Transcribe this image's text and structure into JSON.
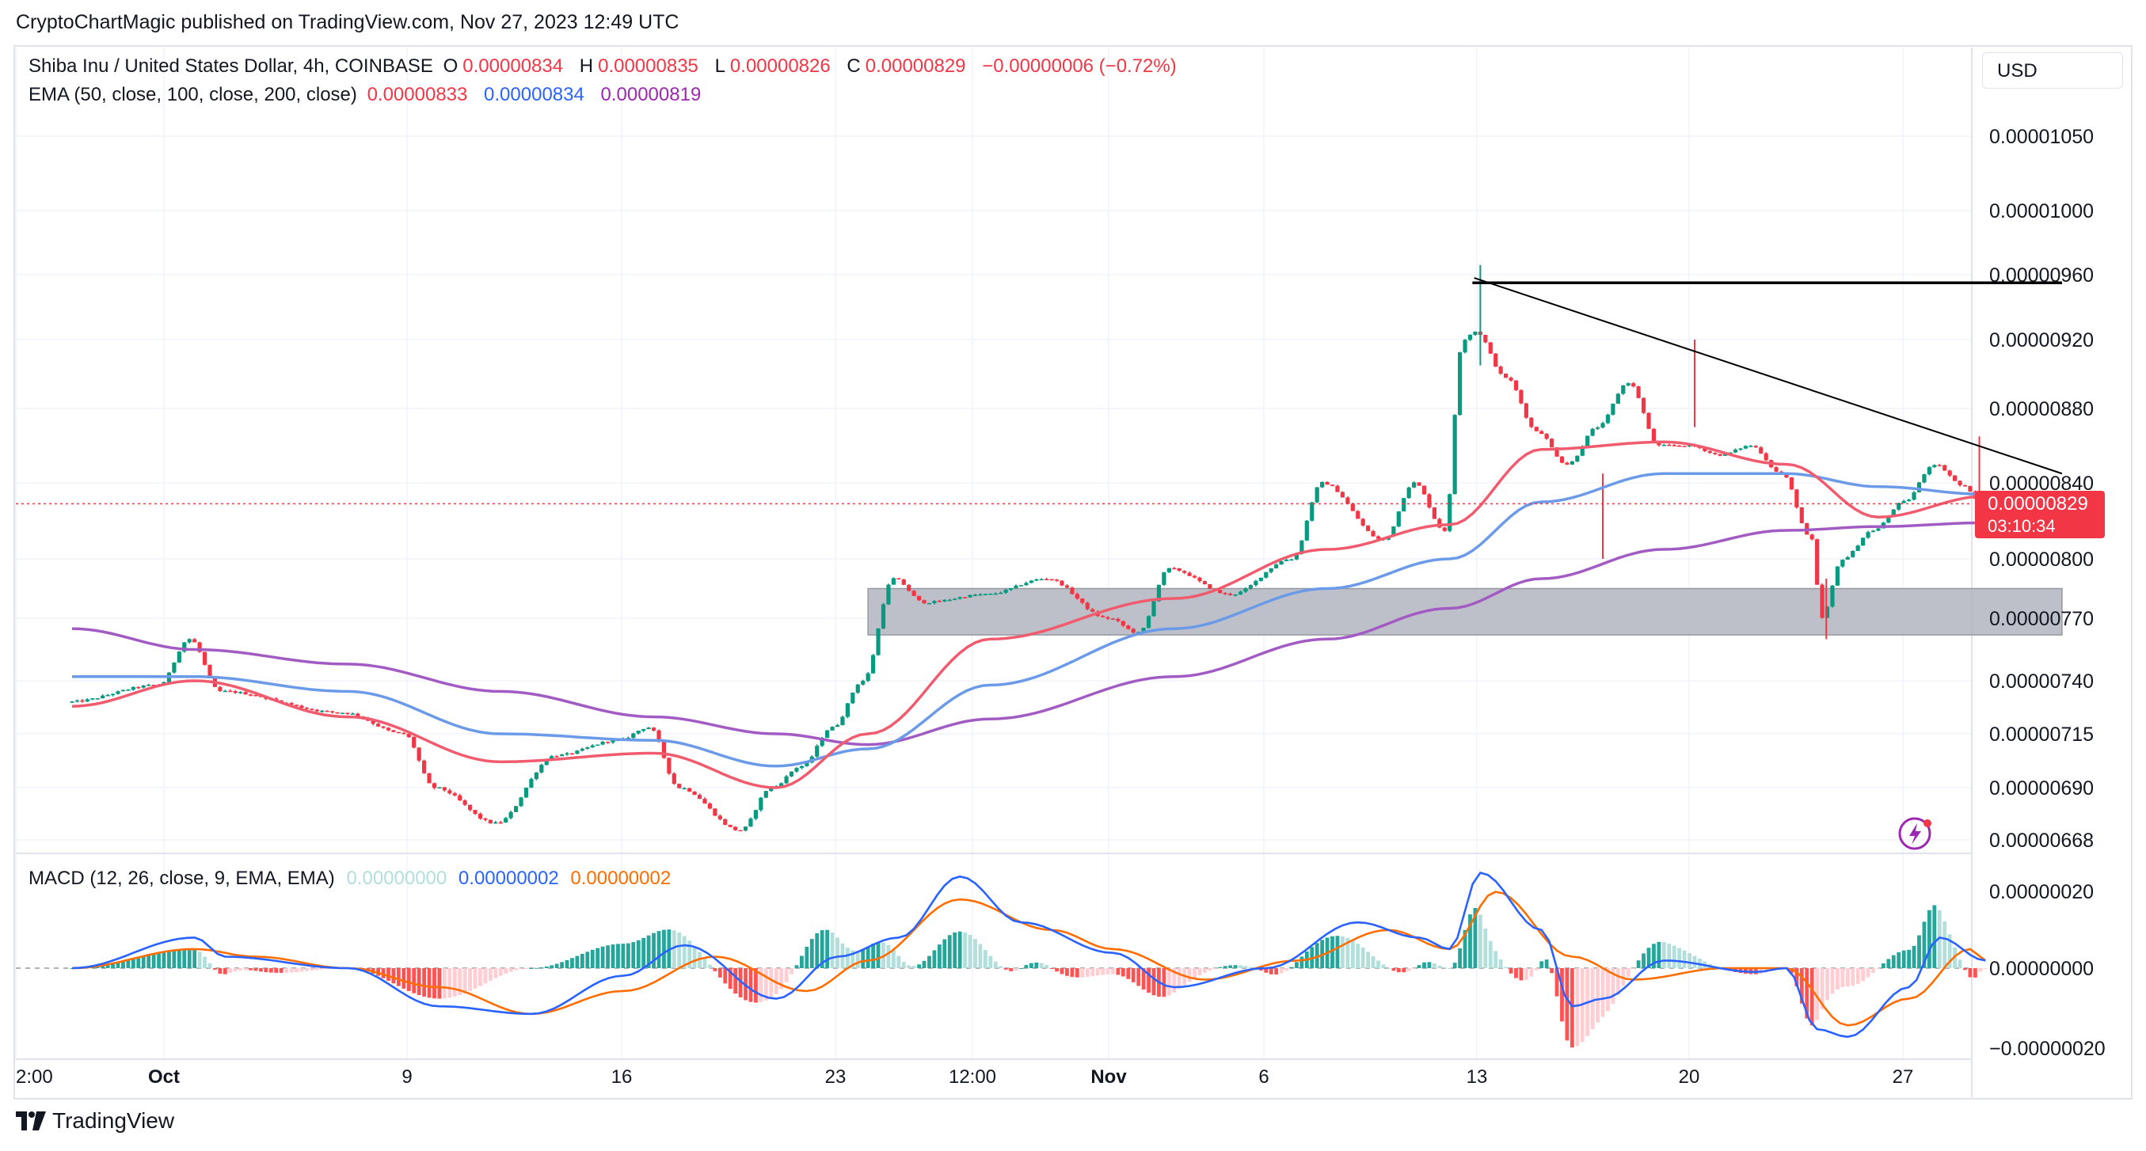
{
  "caption": "CryptoChartMagic published on TradingView.com, Nov 27, 2023 12:49 UTC",
  "legend": {
    "title": "Shiba Inu / United States Dollar, 4h, COINBASE",
    "o_label": "O",
    "o_val": "0.00000834",
    "h_label": "H",
    "h_val": "0.00000835",
    "l_label": "L",
    "l_val": "0.00000826",
    "c_label": "C",
    "c_val": "0.00000829",
    "change": "−0.00000006 (−0.72%)",
    "ema_title": "EMA (50, close, 100, close, 200, close)",
    "ema50": "0.00000833",
    "ema100": "0.00000834",
    "ema200": "0.00000819"
  },
  "currency": "USD",
  "last_price": "0.00000829",
  "countdown": "03:10:34",
  "macd_legend": {
    "title": "MACD (12, 26, close, 9, EMA, EMA)",
    "hist": "0.00000000",
    "macd": "0.00000002",
    "signal": "0.00000002"
  },
  "brand": "TradingView",
  "colors": {
    "up": "#089981",
    "down": "#f23645",
    "ema50": "#f05b6e",
    "ema100": "#6b9ae8",
    "ema200": "#a35bc4",
    "macd": "#2962ff",
    "signal": "#ff6d00",
    "zone": "#b2b5be",
    "price_line": "#f23645"
  },
  "chart_data": {
    "type": "candlestick",
    "symbol": "SHIB/USD",
    "timeframe": "4h",
    "price_axis_ticks": [
      "0.00001050",
      "0.00001000",
      "0.00000960",
      "0.00000920",
      "0.00000880",
      "0.00000840",
      "0.00000800",
      "0.00000770",
      "0.00000740",
      "0.00000715",
      "0.00000690",
      "0.00000668"
    ],
    "time_axis_ticks": [
      "2:00",
      "Oct",
      "9",
      "16",
      "23",
      "12:00",
      "Nov",
      "6",
      "13",
      "20",
      "27"
    ],
    "macd_axis_ticks": [
      "0.00000020",
      "0.00000000",
      "−0.00000020"
    ],
    "anchors_day": [
      {
        "day": -3,
        "price": 7.3e-06
      },
      {
        "day": 0,
        "price": 7.38e-06
      },
      {
        "day": 1,
        "price": 7.6e-06
      },
      {
        "day": 2,
        "price": 7.35e-06
      },
      {
        "day": 6,
        "price": 7.25e-06
      },
      {
        "day": 8,
        "price": 7.15e-06
      },
      {
        "day": 9,
        "price": 6.9e-06
      },
      {
        "day": 11,
        "price": 6.75e-06
      },
      {
        "day": 13,
        "price": 7.05e-06
      },
      {
        "day": 15,
        "price": 7.12e-06
      },
      {
        "day": 16,
        "price": 7.18e-06
      },
      {
        "day": 17,
        "price": 6.9e-06
      },
      {
        "day": 19,
        "price": 6.72e-06
      },
      {
        "day": 20,
        "price": 6.9e-06
      },
      {
        "day": 21,
        "price": 7e-06
      },
      {
        "day": 22,
        "price": 7.18e-06
      },
      {
        "day": 23,
        "price": 7.4e-06
      },
      {
        "day": 24,
        "price": 7.9e-06
      },
      {
        "day": 25,
        "price": 7.78e-06
      },
      {
        "day": 27,
        "price": 7.82e-06
      },
      {
        "day": 29,
        "price": 7.9e-06
      },
      {
        "day": 31,
        "price": 7.7e-06
      },
      {
        "day": 32,
        "price": 7.63e-06
      },
      {
        "day": 33,
        "price": 7.95e-06
      },
      {
        "day": 35,
        "price": 7.82e-06
      },
      {
        "day": 37,
        "price": 8e-06
      },
      {
        "day": 38,
        "price": 8.4e-06
      },
      {
        "day": 40,
        "price": 8.1e-06
      },
      {
        "day": 41,
        "price": 8.4e-06
      },
      {
        "day": 42,
        "price": 8.15e-06
      },
      {
        "day": 42.6,
        "price": 9.2e-06
      },
      {
        "day": 43,
        "price": 9.25e-06
      },
      {
        "day": 44,
        "price": 8.98e-06
      },
      {
        "day": 45,
        "price": 8.68e-06
      },
      {
        "day": 46,
        "price": 8.5e-06
      },
      {
        "day": 47,
        "price": 8.7e-06
      },
      {
        "day": 48,
        "price": 8.95e-06
      },
      {
        "day": 49,
        "price": 8.6e-06
      },
      {
        "day": 50,
        "price": 8.6e-06
      },
      {
        "day": 51,
        "price": 8.55e-06
      },
      {
        "day": 52,
        "price": 8.6e-06
      },
      {
        "day": 53,
        "price": 8.45e-06
      },
      {
        "day": 54,
        "price": 8.1e-06
      },
      {
        "day": 54.3,
        "price": 7.7e-06
      },
      {
        "day": 55,
        "price": 8e-06
      },
      {
        "day": 56,
        "price": 8.15e-06
      },
      {
        "day": 57,
        "price": 8.3e-06
      },
      {
        "day": 58,
        "price": 8.5e-06
      },
      {
        "day": 59,
        "price": 8.38e-06
      },
      {
        "day": 59.5,
        "price": 8.29e-06
      }
    ],
    "ema50_anchors": [
      [
        -3,
        7.28e-06
      ],
      [
        1,
        7.4e-06
      ],
      [
        6,
        7.23e-06
      ],
      [
        11,
        7.02e-06
      ],
      [
        16,
        7.06e-06
      ],
      [
        20,
        6.9e-06
      ],
      [
        23,
        7.15e-06
      ],
      [
        27,
        7.6e-06
      ],
      [
        33,
        7.8e-06
      ],
      [
        38,
        8.05e-06
      ],
      [
        42,
        8.18e-06
      ],
      [
        45,
        8.58e-06
      ],
      [
        49,
        8.62e-06
      ],
      [
        53,
        8.5e-06
      ],
      [
        56,
        8.22e-06
      ],
      [
        59.5,
        8.33e-06
      ]
    ],
    "ema100_anchors": [
      [
        -3,
        7.42e-06
      ],
      [
        1,
        7.42e-06
      ],
      [
        6,
        7.35e-06
      ],
      [
        11,
        7.15e-06
      ],
      [
        16,
        7.12e-06
      ],
      [
        20,
        7e-06
      ],
      [
        23,
        7.08e-06
      ],
      [
        27,
        7.38e-06
      ],
      [
        33,
        7.65e-06
      ],
      [
        38,
        7.85e-06
      ],
      [
        42,
        8e-06
      ],
      [
        45,
        8.3e-06
      ],
      [
        49,
        8.45e-06
      ],
      [
        53,
        8.45e-06
      ],
      [
        56,
        8.38e-06
      ],
      [
        59.5,
        8.34e-06
      ]
    ],
    "ema200_anchors": [
      [
        -3,
        7.65e-06
      ],
      [
        1,
        7.55e-06
      ],
      [
        6,
        7.48e-06
      ],
      [
        11,
        7.35e-06
      ],
      [
        16,
        7.23e-06
      ],
      [
        20,
        7.15e-06
      ],
      [
        23,
        7.1e-06
      ],
      [
        27,
        7.22e-06
      ],
      [
        33,
        7.42e-06
      ],
      [
        38,
        7.6e-06
      ],
      [
        42,
        7.75e-06
      ],
      [
        45,
        7.9e-06
      ],
      [
        49,
        8.05e-06
      ],
      [
        53,
        8.15e-06
      ],
      [
        56,
        8.17e-06
      ],
      [
        59.5,
        8.19e-06
      ]
    ],
    "macd_anchors": [
      [
        -3,
        0.0
      ],
      [
        1,
        8e-08
      ],
      [
        2,
        3e-08
      ],
      [
        6,
        0.0
      ],
      [
        9,
        -1e-07
      ],
      [
        12,
        -1.2e-07
      ],
      [
        15,
        -2e-08
      ],
      [
        17,
        6e-08
      ],
      [
        20,
        -8e-08
      ],
      [
        22,
        3e-08
      ],
      [
        24,
        8e-08
      ],
      [
        26,
        2.4e-07
      ],
      [
        28,
        1.2e-07
      ],
      [
        31,
        4e-08
      ],
      [
        33,
        -5e-08
      ],
      [
        36,
        0.0
      ],
      [
        39,
        1.2e-07
      ],
      [
        41,
        8e-08
      ],
      [
        42,
        5e-08
      ],
      [
        43,
        2.5e-07
      ],
      [
        45,
        1e-07
      ],
      [
        46,
        -1e-07
      ],
      [
        47,
        -8e-08
      ],
      [
        49,
        2e-08
      ],
      [
        52,
        -1e-08
      ],
      [
        53,
        0.0
      ],
      [
        54,
        -1.6e-07
      ],
      [
        55,
        -1.8e-07
      ],
      [
        57,
        -5e-08
      ],
      [
        58,
        8e-08
      ],
      [
        59.5,
        2e-08
      ]
    ],
    "signal_anchors": [
      [
        -3,
        0.0
      ],
      [
        1,
        5e-08
      ],
      [
        3,
        3e-08
      ],
      [
        6,
        0.0
      ],
      [
        9,
        -5e-08
      ],
      [
        12,
        -1.2e-07
      ],
      [
        15,
        -6e-08
      ],
      [
        18,
        3e-08
      ],
      [
        21,
        -6e-08
      ],
      [
        23,
        2e-08
      ],
      [
        26,
        1.8e-07
      ],
      [
        29,
        1e-07
      ],
      [
        31,
        5e-08
      ],
      [
        34,
        -3e-08
      ],
      [
        37,
        2e-08
      ],
      [
        40,
        1e-07
      ],
      [
        42,
        5e-08
      ],
      [
        43.5,
        2e-07
      ],
      [
        46,
        3e-08
      ],
      [
        48,
        -3e-08
      ],
      [
        51,
        0.0
      ],
      [
        53,
        0.0
      ],
      [
        55,
        -1.5e-07
      ],
      [
        57,
        -8e-08
      ],
      [
        59,
        5e-08
      ],
      [
        59.5,
        2e-08
      ]
    ],
    "demand_zone": {
      "from_day": 23,
      "to_day": 62,
      "low": 7.62e-06,
      "high": 7.85e-06
    },
    "resistance_line": {
      "from_day": 43,
      "to_day": 62,
      "price": 9.55e-06
    },
    "descending_trendline": [
      [
        42.8,
        9.58e-06
      ],
      [
        62,
        8.45e-06
      ]
    ]
  }
}
